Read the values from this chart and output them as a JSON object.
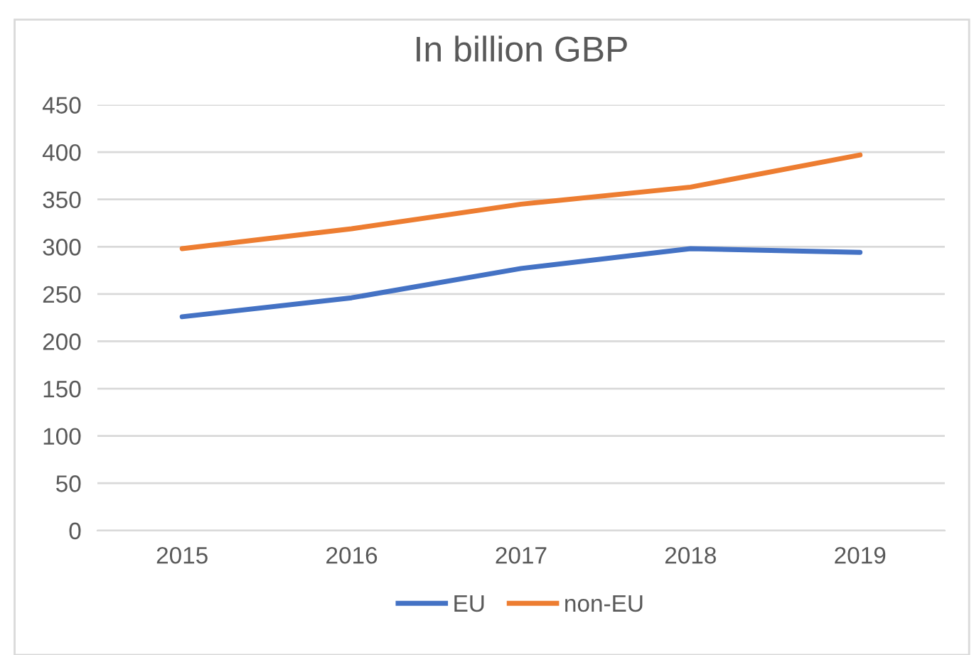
{
  "chart_data": {
    "type": "line",
    "title": "In billion GBP",
    "categories": [
      "2015",
      "2016",
      "2017",
      "2018",
      "2019"
    ],
    "series": [
      {
        "name": "EU",
        "color": "#4472c4",
        "values": [
          226,
          246,
          277,
          298,
          294
        ]
      },
      {
        "name": "non-EU",
        "color": "#ed7d31",
        "values": [
          298,
          319,
          345,
          363,
          397
        ]
      }
    ],
    "ylim": [
      0,
      450
    ],
    "yticks": [
      0,
      50,
      100,
      150,
      200,
      250,
      300,
      350,
      400,
      450
    ],
    "grid": "y",
    "legend": "bottom",
    "marker": "none",
    "line_style": "solid"
  }
}
